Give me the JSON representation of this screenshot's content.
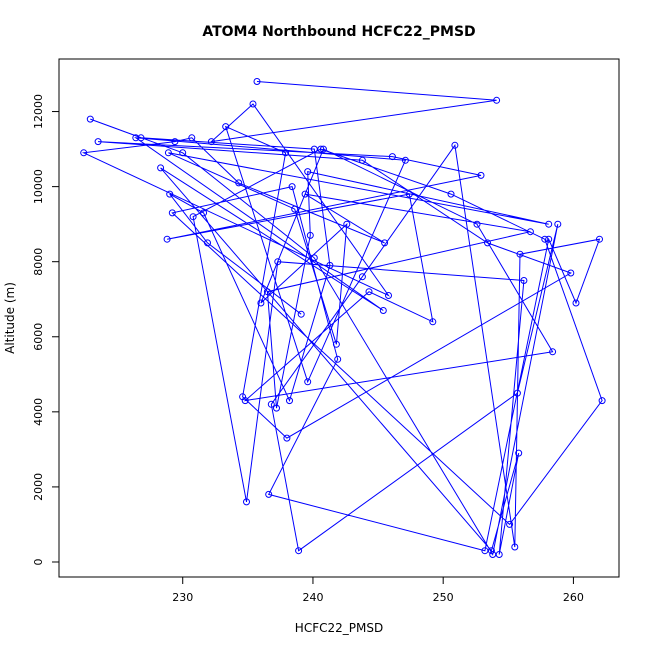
{
  "chart_data": {
    "type": "line",
    "title": "ATOM4 Northbound HCFC22_PMSD",
    "xlabel": "HCFC22_PMSD",
    "ylabel": "Altitude (m)",
    "xlim": [
      220.5,
      263.5
    ],
    "ylim": [
      -400,
      13400
    ],
    "xticks": [
      230,
      240,
      250,
      260
    ],
    "yticks": [
      0,
      2000,
      4000,
      6000,
      8000,
      10000,
      12000
    ],
    "grid": false,
    "legend": "none",
    "series_color": "#0000ff",
    "markers": "open-circle",
    "x": [
      235.7,
      254.1,
      232.2,
      235.4,
      245.8,
      222.4,
      229.4,
      230.7,
      234.3,
      245.5,
      239.4,
      256.7,
      236.5,
      237.2,
      239.8,
      239.6,
      258.1,
      228.9,
      238.6,
      241.8,
      242.6,
      236.0,
      240.8,
      252.6,
      258.4,
      234.8,
      244.3,
      249.2,
      247.4,
      228.8,
      252.9,
      246.1,
      223.5,
      243.8,
      253.4,
      259.8,
      238.0,
      234.6,
      237.9,
      233.3,
      239.6,
      247.1,
      226.4,
      245.4,
      228.3,
      253.7,
      255.8,
      254.3,
      256.2,
      237.3,
      234.9,
      230.8,
      240.6,
      250.6,
      257.8,
      262.2,
      255.1,
      229.2,
      238.4,
      241.9,
      236.6,
      253.2,
      258.1,
      260.2,
      262.0,
      255.9,
      255.5,
      250.9,
      243.8,
      236.8,
      238.9,
      255.7,
      258.8,
      253.8,
      240.1,
      230.0,
      222.9,
      226.8,
      240.1,
      241.3,
      238.2,
      231.6,
      229.0,
      231.9,
      239.1
    ],
    "y": [
      12800,
      12300,
      11200,
      12200,
      7100,
      10900,
      11200,
      11300,
      10100,
      8500,
      9800,
      8800,
      7200,
      4100,
      8700,
      10400,
      9000,
      10900,
      9400,
      5800,
      9000,
      6900,
      11000,
      9000,
      5600,
      4300,
      7200,
      6400,
      9800,
      8600,
      10300,
      10800,
      11200,
      10700,
      8500,
      7700,
      3300,
      4400,
      10900,
      11600,
      4800,
      10700,
      11300,
      6700,
      10500,
      300,
      2900,
      200,
      7500,
      8000,
      1600,
      9200,
      11000,
      9800,
      8600,
      4300,
      1000,
      9300,
      10000,
      5400,
      1800,
      300,
      8600,
      6900,
      8600,
      8200,
      400,
      11100,
      7600,
      4200,
      300,
      4500,
      9000,
      200,
      8100,
      10900,
      11800,
      11300,
      11000,
      7900,
      4300,
      9300,
      9800,
      8500,
      6600
    ]
  }
}
